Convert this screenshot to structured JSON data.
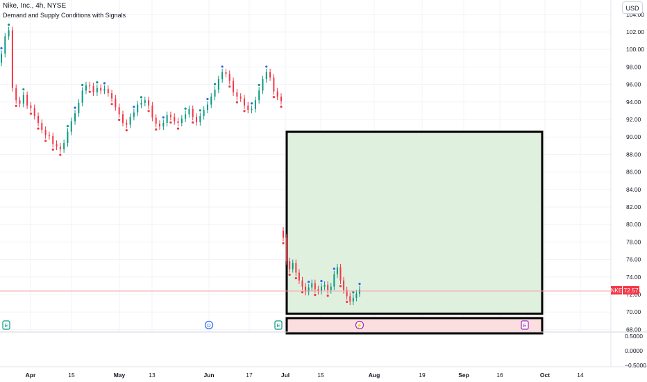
{
  "header": {
    "title": "Nike, Inc., 4h, NYSE",
    "indicator": "Demand and Supply Conditions with Signals"
  },
  "currency_button": "USD",
  "price_badge": {
    "ticker": "NKE",
    "value": "72.57",
    "color": "#f23645"
  },
  "events": [
    {
      "letter": "E",
      "color": "#089981"
    },
    {
      "letter": "D",
      "color": "#2962ff"
    },
    {
      "letter": "E",
      "color": "#089981"
    },
    {
      "letter": "⚡",
      "color": "#9c27b0"
    },
    {
      "letter": "E",
      "color": "#9c27b0"
    }
  ],
  "colors": {
    "up": "#089981",
    "down": "#f23645",
    "dot_up": "#2962ff",
    "demand_zone": "#dff0df",
    "supply_zone": "#fcdde0",
    "grid": "#f0f3fa"
  },
  "chart_data": [
    {
      "type": "candlestick",
      "title": "Nike, Inc., 4h, NYSE",
      "x_tick_labels": [
        "Apr",
        "15",
        "May",
        "13",
        "Jun",
        "17",
        "Jul",
        "15",
        "Aug",
        "19",
        "Sep",
        "16",
        "Oct",
        "14"
      ],
      "y_tick_labels": [
        "68.00",
        "70.00",
        "72.00",
        "74.00",
        "76.00",
        "78.00",
        "80.00",
        "82.00",
        "84.00",
        "86.00",
        "88.00",
        "90.00",
        "92.00",
        "94.00",
        "96.00",
        "98.00",
        "100.00",
        "102.00",
        "104.00"
      ],
      "ylim": [
        68,
        104.6
      ],
      "last_price": 72.57,
      "series": [
        {
          "segment": "Mar 25 - Jun 28",
          "closes": [
            99.5,
            101.5,
            102.2,
            95.6,
            94.2,
            93.8,
            94.8,
            93.6,
            93.3,
            92.4,
            91.6,
            90.8,
            90.2,
            90.1,
            89.2,
            88.9,
            88.6,
            89.3,
            90.6,
            91.8,
            92.7,
            93.9,
            95.3,
            95.9,
            95.8,
            95.1,
            95.6,
            95.3,
            95.5,
            95.0,
            94.4,
            93.4,
            92.6,
            91.6,
            91.4,
            92.3,
            92.8,
            93.7,
            93.9,
            94.2,
            93.6,
            92.2,
            91.5,
            91.2,
            91.6,
            92.5,
            92.3,
            91.8,
            91.6,
            92.1,
            92.6,
            93.2,
            92.3,
            91.7,
            92.4,
            93.1,
            93.7,
            94.6,
            95.4,
            96.6,
            97.4,
            97.2,
            96.4,
            95.1,
            94.6,
            94.4,
            93.6,
            93.1,
            93.2,
            94.2,
            95.3,
            96.6,
            97.4,
            96.8,
            95.2,
            94.6,
            94.1
          ]
        },
        {
          "segment": "Jun 28 - Jul 26",
          "closes": [
            78.5,
            75.8,
            74.9,
            75.6,
            74.5,
            73.6,
            72.9,
            72.3,
            72.8,
            73.3,
            72.6,
            72.4,
            72.9,
            73.1,
            72.5,
            72.9,
            74.3,
            75.1,
            73.6,
            72.5,
            71.8,
            71.2,
            71.6,
            72.1,
            72.57
          ]
        }
      ],
      "zones": [
        {
          "kind": "demand",
          "start": "Jun 28",
          "end": "Sep 30",
          "top": 90.6,
          "bottom": 69.8
        },
        {
          "kind": "supply",
          "start": "Jun 28",
          "end": "Sep 30",
          "top": 69.3,
          "bottom": 68.0
        }
      ]
    },
    {
      "type": "line",
      "title": "Demand and Supply Conditions with Signals",
      "y_tick_labels": [
        "0.5000",
        "0.0000",
        "−0.5000"
      ],
      "ylim": [
        -0.7,
        0.6
      ]
    }
  ]
}
